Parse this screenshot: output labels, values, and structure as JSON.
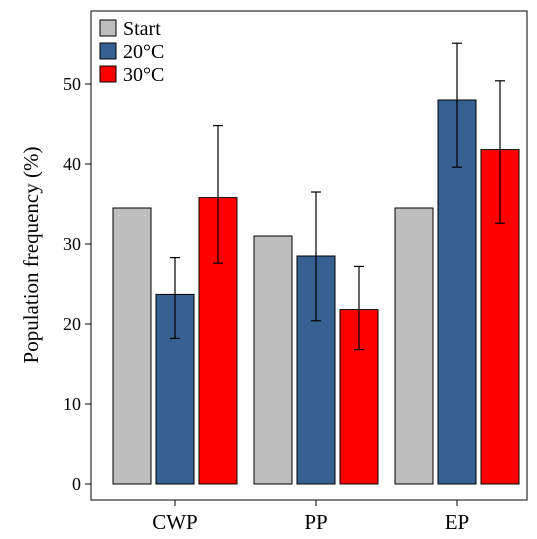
{
  "chart_data": {
    "type": "bar",
    "title": "",
    "xlabel": "",
    "ylabel": "Population frequency (%)",
    "ylim": [
      -1,
      59
    ],
    "yticks": [
      0,
      10,
      20,
      30,
      40,
      50
    ],
    "grid": false,
    "legend_position": "top-left",
    "categories": [
      "CWP",
      "PP",
      "EP"
    ],
    "series": [
      {
        "name": "Start",
        "color": "#bebebe",
        "values": [
          34.5,
          31.0,
          34.5
        ],
        "err_low": [
          null,
          null,
          null
        ],
        "err_high": [
          null,
          null,
          null
        ]
      },
      {
        "name": "20°C",
        "color": "#376092",
        "values": [
          23.7,
          28.5,
          48.0
        ],
        "err_low": [
          18.2,
          20.4,
          39.6
        ],
        "err_high": [
          28.3,
          36.5,
          55.1
        ]
      },
      {
        "name": "30°C",
        "color": "#ff0000",
        "values": [
          35.8,
          21.8,
          41.8
        ],
        "err_low": [
          27.6,
          16.8,
          32.6
        ],
        "err_high": [
          44.8,
          27.2,
          50.4
        ]
      }
    ]
  }
}
